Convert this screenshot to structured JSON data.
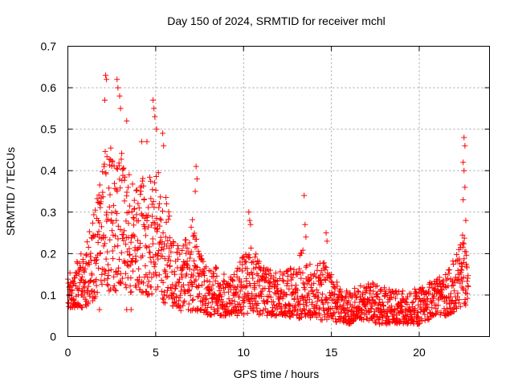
{
  "chart_data": {
    "type": "scatter",
    "title": "Day 150 of 2024, SRMTID for receiver mchl",
    "xlabel": "GPS time / hours",
    "ylabel": "SRMTID / TECUs",
    "xlim": [
      0,
      24
    ],
    "ylim": [
      0,
      0.7
    ],
    "x_ticks": [
      0,
      5,
      10,
      15,
      20
    ],
    "x_tick_labels": [
      "0",
      "5",
      "10",
      "15",
      "20"
    ],
    "y_ticks": [
      0,
      0.1,
      0.2,
      0.3,
      0.4,
      0.5,
      0.6,
      0.7
    ],
    "y_tick_labels": [
      "0",
      "0.1",
      "0.2",
      "0.3",
      "0.4",
      "0.5",
      "0.6",
      "0.7"
    ],
    "grid": true,
    "marker": "+",
    "color": "#ff0000",
    "series": [
      {
        "name": "SRMTID",
        "envelope": {
          "x": [
            0,
            0.5,
            1,
            1.5,
            2,
            2.5,
            3,
            3.5,
            4,
            4.5,
            5,
            5.5,
            6,
            6.5,
            7,
            7.5,
            8,
            8.5,
            9,
            9.5,
            10,
            10.5,
            11,
            11.5,
            12,
            12.5,
            13,
            13.5,
            14,
            14.5,
            15,
            15.5,
            16,
            16.5,
            17,
            17.5,
            18,
            18.5,
            19,
            19.5,
            20,
            20.5,
            21,
            21.5,
            22,
            22.5,
            22.8
          ],
          "y_low": [
            0.07,
            0.07,
            0.07,
            0.09,
            0.13,
            0.1,
            0.12,
            0.09,
            0.11,
            0.1,
            0.1,
            0.08,
            0.07,
            0.06,
            0.06,
            0.06,
            0.05,
            0.05,
            0.05,
            0.05,
            0.05,
            0.06,
            0.05,
            0.05,
            0.05,
            0.05,
            0.04,
            0.05,
            0.04,
            0.04,
            0.04,
            0.03,
            0.03,
            0.04,
            0.04,
            0.03,
            0.03,
            0.03,
            0.03,
            0.03,
            0.03,
            0.04,
            0.05,
            0.05,
            0.06,
            0.07,
            0.08
          ],
          "y_high": [
            0.15,
            0.18,
            0.22,
            0.3,
            0.44,
            0.48,
            0.45,
            0.4,
            0.38,
            0.4,
            0.42,
            0.36,
            0.24,
            0.22,
            0.3,
            0.22,
            0.18,
            0.17,
            0.15,
            0.15,
            0.2,
            0.22,
            0.18,
            0.16,
            0.16,
            0.16,
            0.18,
            0.22,
            0.15,
            0.2,
            0.15,
            0.12,
            0.11,
            0.12,
            0.13,
            0.13,
            0.12,
            0.11,
            0.11,
            0.11,
            0.12,
            0.13,
            0.14,
            0.15,
            0.2,
            0.25,
            0.2
          ]
        },
        "points_per_hour": 85,
        "peaks": [
          {
            "x": 2.15,
            "y": 0.63
          },
          {
            "x": 2.2,
            "y": 0.62
          },
          {
            "x": 2.8,
            "y": 0.62
          },
          {
            "x": 2.85,
            "y": 0.6
          },
          {
            "x": 2.1,
            "y": 0.57
          },
          {
            "x": 2.95,
            "y": 0.58
          },
          {
            "x": 3.0,
            "y": 0.55
          },
          {
            "x": 4.85,
            "y": 0.57
          },
          {
            "x": 4.9,
            "y": 0.55
          },
          {
            "x": 4.95,
            "y": 0.53
          },
          {
            "x": 5.05,
            "y": 0.5
          },
          {
            "x": 5.4,
            "y": 0.49
          },
          {
            "x": 5.45,
            "y": 0.46
          },
          {
            "x": 3.35,
            "y": 0.52
          },
          {
            "x": 4.2,
            "y": 0.47
          },
          {
            "x": 4.5,
            "y": 0.47
          },
          {
            "x": 7.3,
            "y": 0.41
          },
          {
            "x": 7.35,
            "y": 0.38
          },
          {
            "x": 7.25,
            "y": 0.35
          },
          {
            "x": 10.3,
            "y": 0.3
          },
          {
            "x": 10.35,
            "y": 0.28
          },
          {
            "x": 10.4,
            "y": 0.27
          },
          {
            "x": 13.45,
            "y": 0.34
          },
          {
            "x": 13.5,
            "y": 0.27
          },
          {
            "x": 13.55,
            "y": 0.24
          },
          {
            "x": 14.7,
            "y": 0.25
          },
          {
            "x": 14.75,
            "y": 0.23
          },
          {
            "x": 22.55,
            "y": 0.48
          },
          {
            "x": 22.6,
            "y": 0.46
          },
          {
            "x": 22.5,
            "y": 0.42
          },
          {
            "x": 22.55,
            "y": 0.4
          },
          {
            "x": 22.6,
            "y": 0.36
          },
          {
            "x": 22.5,
            "y": 0.33
          },
          {
            "x": 22.65,
            "y": 0.28
          },
          {
            "x": 3.35,
            "y": 0.065
          },
          {
            "x": 3.6,
            "y": 0.065
          },
          {
            "x": 1.8,
            "y": 0.065
          }
        ]
      }
    ]
  }
}
